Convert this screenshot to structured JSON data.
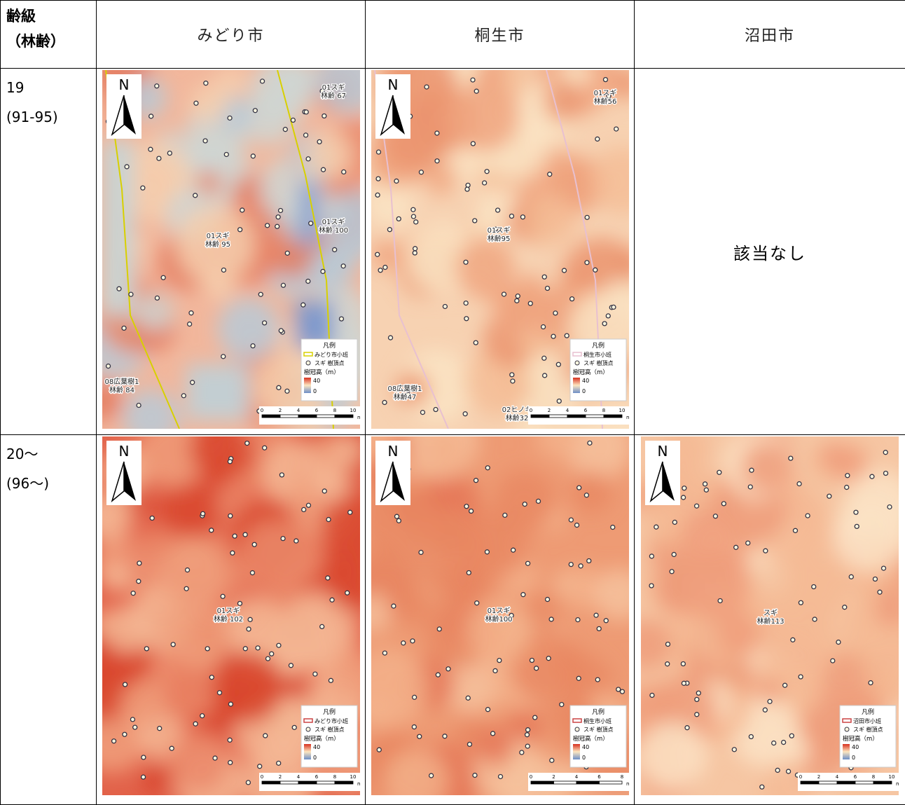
{
  "header": {
    "corner": [
      "齢級",
      "（林齢）"
    ],
    "columns": [
      "みどり市",
      "桐生市",
      "沼田市"
    ]
  },
  "rows": [
    {
      "class": "19",
      "age": "(91-95)",
      "maps": [
        {
          "north": "N",
          "labels": [
            [
              "01スギ",
              "林齢 67"
            ],
            [
              "01スギ",
              "林齢 100"
            ],
            [
              "01スギ",
              "林齢 95"
            ],
            [
              "08広葉樹1",
              "林齢 84"
            ]
          ],
          "legend": {
            "title": "凡例",
            "items": [
              "みどり市小班",
              "スギ 樹頂点"
            ],
            "unit": "樹冠高（m）",
            "max": "40",
            "min": "0"
          },
          "scale": [
            "0",
            "2",
            "4",
            "6",
            "8",
            "10"
          ],
          "scale_unit": "m"
        },
        {
          "north": "N",
          "labels": [
            [
              "01スギ",
              "林齢56"
            ],
            [
              "01スギ",
              "林齢95"
            ],
            [
              "08広葉樹1",
              "林齢47"
            ],
            [
              "02ヒノキ",
              "林齢32"
            ]
          ],
          "legend": {
            "title": "凡例",
            "items": [
              "桐生市小班",
              "スギ 樹頂点"
            ],
            "unit": "樹冠高（m）",
            "max": "40",
            "min": "0"
          },
          "scale": [
            "0",
            "2",
            "4",
            "6",
            "8",
            "10"
          ],
          "scale_unit": "m"
        },
        {
          "none": "該当なし"
        }
      ]
    },
    {
      "class": "20～",
      "age": "(96～)",
      "maps": [
        {
          "north": "N",
          "labels": [
            [
              "01スギ",
              "林齢 102"
            ]
          ],
          "legend": {
            "title": "凡例",
            "items": [
              "みどり市小班",
              "スギ 樹頂点"
            ],
            "unit": "樹冠高（m）",
            "max": "40",
            "min": "0"
          },
          "scale": [
            "0",
            "2",
            "4",
            "6",
            "8",
            "10"
          ],
          "scale_unit": "m"
        },
        {
          "north": "N",
          "labels": [
            [
              "01スギ",
              "林齢100"
            ]
          ],
          "legend": {
            "title": "凡例",
            "items": [
              "桐生市小班",
              "スギ 樹頂点"
            ],
            "unit": "樹冠高（m）",
            "max": "40",
            "min": "0"
          },
          "scale": [
            "0",
            "2",
            "4",
            "6",
            "8"
          ],
          "scale_unit": "m"
        },
        {
          "north": "N",
          "labels": [
            [
              "スギ",
              "林齢113"
            ]
          ],
          "legend": {
            "title": "凡例",
            "items": [
              "沼田市小班",
              "スギ 樹頂点"
            ],
            "unit": "樹冠高（m）",
            "max": "40",
            "min": "0"
          },
          "scale": [
            "0",
            "2",
            "4",
            "6",
            "8",
            "10"
          ],
          "scale_unit": "m"
        }
      ]
    }
  ]
}
